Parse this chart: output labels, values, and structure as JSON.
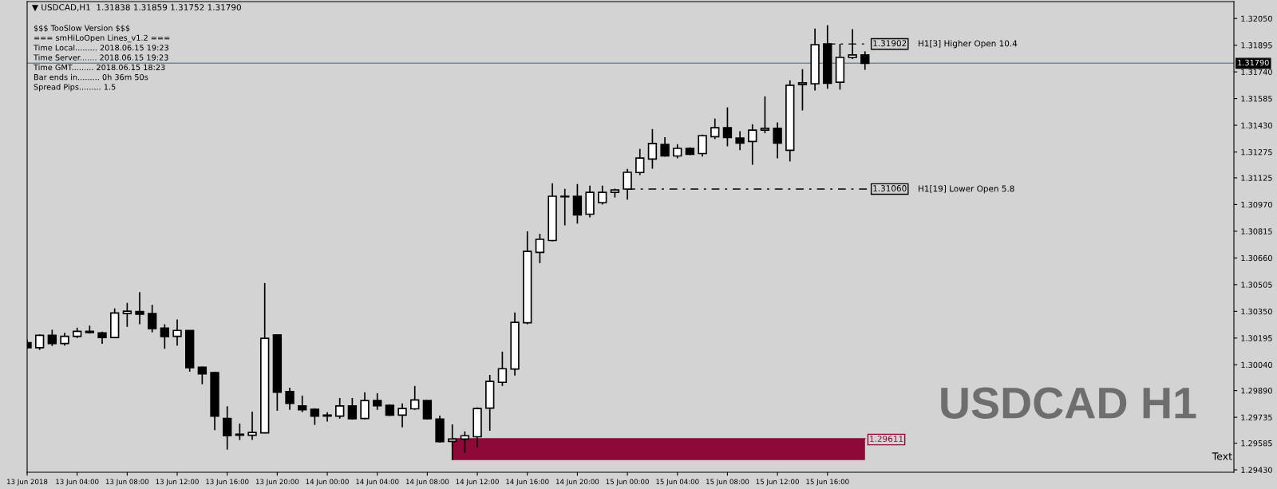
{
  "chart_data": {
    "type": "candlestick",
    "title": "▼ USDCAD,H1  1.31838 1.31859 1.31752 1.31790",
    "x": [
      "2018-06-13T00:00",
      "2018-06-13T01:00",
      "2018-06-13T02:00",
      "2018-06-13T03:00",
      "2018-06-13T04:00",
      "2018-06-13T05:00",
      "2018-06-13T06:00",
      "2018-06-13T07:00",
      "2018-06-13T08:00",
      "2018-06-13T09:00",
      "2018-06-13T10:00",
      "2018-06-13T11:00",
      "2018-06-13T12:00",
      "2018-06-13T13:00",
      "2018-06-13T14:00",
      "2018-06-13T15:00",
      "2018-06-13T16:00",
      "2018-06-13T17:00",
      "2018-06-13T18:00",
      "2018-06-13T19:00",
      "2018-06-13T20:00",
      "2018-06-13T21:00",
      "2018-06-13T22:00",
      "2018-06-13T23:00",
      "2018-06-14T00:00",
      "2018-06-14T01:00",
      "2018-06-14T02:00",
      "2018-06-14T03:00",
      "2018-06-14T04:00",
      "2018-06-14T05:00",
      "2018-06-14T06:00",
      "2018-06-14T07:00",
      "2018-06-14T08:00",
      "2018-06-14T09:00",
      "2018-06-14T10:00",
      "2018-06-14T11:00",
      "2018-06-14T12:00",
      "2018-06-14T13:00",
      "2018-06-14T14:00",
      "2018-06-14T15:00",
      "2018-06-14T16:00",
      "2018-06-14T17:00",
      "2018-06-14T18:00",
      "2018-06-14T19:00",
      "2018-06-14T20:00",
      "2018-06-14T21:00",
      "2018-06-14T22:00",
      "2018-06-14T23:00",
      "2018-06-15T00:00",
      "2018-06-15T01:00",
      "2018-06-15T02:00",
      "2018-06-15T03:00",
      "2018-06-15T04:00",
      "2018-06-15T05:00",
      "2018-06-15T06:00",
      "2018-06-15T07:00",
      "2018-06-15T08:00",
      "2018-06-15T09:00",
      "2018-06-15T10:00",
      "2018-06-15T11:00",
      "2018-06-15T12:00",
      "2018-06-15T13:00",
      "2018-06-15T14:00",
      "2018-06-15T15:00",
      "2018-06-15T16:00",
      "2018-06-15T17:00",
      "2018-06-15T18:00",
      "2018-06-15T19:00"
    ],
    "ohlc": [
      [
        1.30168,
        1.30186,
        1.30136,
        1.30139
      ],
      [
        1.30139,
        1.30216,
        1.30126,
        1.30211
      ],
      [
        1.30211,
        1.30243,
        1.30149,
        1.30163
      ],
      [
        1.30163,
        1.30225,
        1.30151,
        1.30205
      ],
      [
        1.30205,
        1.30255,
        1.30195,
        1.30234
      ],
      [
        1.30234,
        1.30267,
        1.30221,
        1.30227
      ],
      [
        1.30225,
        1.30232,
        1.30161,
        1.30198
      ],
      [
        1.30198,
        1.30367,
        1.30195,
        1.3034
      ],
      [
        1.30338,
        1.30399,
        1.3026,
        1.30351
      ],
      [
        1.30349,
        1.30461,
        1.30275,
        1.30333
      ],
      [
        1.30337,
        1.30388,
        1.30228,
        1.3025
      ],
      [
        1.30252,
        1.30275,
        1.30133,
        1.30203
      ],
      [
        1.30205,
        1.30303,
        1.30151,
        1.30239
      ],
      [
        1.30239,
        1.30239,
        1.3,
        1.30023
      ],
      [
        1.30026,
        1.3003,
        1.29927,
        1.29987
      ],
      [
        1.29994,
        1.3,
        1.2966,
        1.29742
      ],
      [
        1.29728,
        1.29799,
        1.29547,
        1.29628
      ],
      [
        1.29637,
        1.29699,
        1.29603,
        1.29631
      ],
      [
        1.29631,
        1.29768,
        1.29603,
        1.29647
      ],
      [
        1.29645,
        1.30514,
        1.29642,
        1.30193
      ],
      [
        1.30213,
        1.30216,
        1.29773,
        1.29881
      ],
      [
        1.29884,
        1.29907,
        1.29778,
        1.29816
      ],
      [
        1.29801,
        1.29861,
        1.29765,
        1.29779
      ],
      [
        1.29782,
        1.29787,
        1.29691,
        1.29742
      ],
      [
        1.29748,
        1.29764,
        1.2971,
        1.29742
      ],
      [
        1.29742,
        1.29847,
        1.29727,
        1.29801
      ],
      [
        1.29801,
        1.29847,
        1.29722,
        1.29727
      ],
      [
        1.29728,
        1.2988,
        1.29724,
        1.29832
      ],
      [
        1.29832,
        1.29875,
        1.29778,
        1.29802
      ],
      [
        1.29804,
        1.2981,
        1.29742,
        1.29747
      ],
      [
        1.29748,
        1.29815,
        1.29677,
        1.29786
      ],
      [
        1.29784,
        1.29917,
        1.29778,
        1.29836
      ],
      [
        1.29832,
        1.29832,
        1.29722,
        1.29727
      ],
      [
        1.29725,
        1.29745,
        1.29589,
        1.29594
      ],
      [
        1.29595,
        1.29694,
        1.29487,
        1.29609
      ],
      [
        1.29609,
        1.29653,
        1.29529,
        1.29628
      ],
      [
        1.29622,
        1.29792,
        1.2956,
        1.29786
      ],
      [
        1.29788,
        1.29981,
        1.29657,
        1.29943
      ],
      [
        1.29938,
        1.30116,
        1.29917,
        1.30017
      ],
      [
        1.30015,
        1.30343,
        1.29978,
        1.30286
      ],
      [
        1.30284,
        1.30815,
        1.30275,
        1.30698
      ],
      [
        1.30692,
        1.308,
        1.3063,
        1.30768
      ],
      [
        1.30761,
        1.31093,
        1.30757,
        1.31018
      ],
      [
        1.31015,
        1.31061,
        1.30849,
        1.31018
      ],
      [
        1.31018,
        1.31089,
        1.30859,
        1.3091
      ],
      [
        1.30914,
        1.3108,
        1.30896,
        1.31041
      ],
      [
        1.30981,
        1.3108,
        1.3097,
        1.31041
      ],
      [
        1.31041,
        1.31062,
        1.31011,
        1.31055
      ],
      [
        1.3106,
        1.31177,
        1.30998,
        1.31157
      ],
      [
        1.31156,
        1.31293,
        1.31141,
        1.3124
      ],
      [
        1.31234,
        1.31408,
        1.31178,
        1.31324
      ],
      [
        1.31319,
        1.31361,
        1.31248,
        1.31252
      ],
      [
        1.31252,
        1.3132,
        1.31238,
        1.31296
      ],
      [
        1.31296,
        1.31302,
        1.31257,
        1.31262
      ],
      [
        1.31266,
        1.31376,
        1.31248,
        1.3137
      ],
      [
        1.31364,
        1.31469,
        1.3135,
        1.31416
      ],
      [
        1.31416,
        1.31534,
        1.31308,
        1.31359
      ],
      [
        1.31356,
        1.31395,
        1.31285,
        1.31326
      ],
      [
        1.31336,
        1.31436,
        1.31201,
        1.31402
      ],
      [
        1.31402,
        1.31598,
        1.31384,
        1.31412
      ],
      [
        1.31412,
        1.31446,
        1.31238,
        1.31326
      ],
      [
        1.31285,
        1.31691,
        1.3122,
        1.31662
      ],
      [
        1.31667,
        1.31756,
        1.31516,
        1.31676
      ],
      [
        1.31671,
        1.31992,
        1.31632,
        1.31898
      ],
      [
        1.31902,
        1.32011,
        1.31642,
        1.31674
      ],
      [
        1.3168,
        1.31902,
        1.31637,
        1.31824
      ],
      [
        1.31824,
        1.31988,
        1.31815,
        1.31838
      ],
      [
        1.31838,
        1.31859,
        1.31752,
        1.3179
      ]
    ],
    "series": [
      {
        "type": "line",
        "color": "#000000",
        "line_style": "dashed",
        "x": [
          "2018-06-15T16:00",
          "2018-06-15T19:20"
        ],
        "values": [
          1.31902,
          1.31902
        ]
      },
      {
        "type": "line",
        "color": "#000000",
        "line_style": "dashed",
        "x": [
          "2018-06-15T00:00",
          "2018-06-15T19:20"
        ],
        "values": [
          1.3106,
          1.3106
        ]
      },
      {
        "type": "line",
        "color": "#8e0838",
        "x": [
          "2018-06-14T10:00",
          "2018-06-15T19:00"
        ],
        "values": [
          1.29611,
          1.29611
        ],
        "lower": [
          1.29487,
          1.29487
        ],
        "upper": [
          1.29611,
          1.29611
        ]
      }
    ],
    "ref_lines": [
      {
        "axis": "y",
        "value": 1.3179,
        "label": "1.31790",
        "color": "#778899"
      }
    ],
    "annotations": [
      "$$$ TooSlow Version $$$",
      "=== smHiLoOpen Lines_v1.2 ===",
      "Time Local......... 2018.06.15 19:23",
      "Time Server....... 2018.06.15 19:23",
      "Time GMT......... 2018.06.15 18:23",
      "Bar ends in......... 0h 36m 50s",
      "Spread Pips......... 1.5",
      "USDCAD H1",
      "Text",
      "H1[3] Higher Open 10.4",
      "H1[19] Lower Open 5.8",
      "1.29611",
      {
        "text": "1.31902",
        "x": "2018-06-15T19:20",
        "y": 1.31902
      },
      {
        "text": "1.31060",
        "x": "2018-06-15T19:20",
        "y": 1.3106
      }
    ],
    "xlim": [
      "2018-06-13T00:00",
      "2018-06-17T00:30"
    ],
    "xticks": [
      {
        "value": "2018-06-13T00:00",
        "label": "13 Jun 2018"
      },
      {
        "value": "2018-06-13T04:00",
        "label": "13 Jun 04:00"
      },
      {
        "value": "2018-06-13T08:00",
        "label": "13 Jun 08:00"
      },
      {
        "value": "2018-06-13T12:00",
        "label": "13 Jun 12:00"
      },
      {
        "value": "2018-06-13T16:00",
        "label": "13 Jun 16:00"
      },
      {
        "value": "2018-06-13T20:00",
        "label": "13 Jun 20:00"
      },
      {
        "value": "2018-06-14T00:00",
        "label": "14 Jun 00:00"
      },
      {
        "value": "2018-06-14T04:00",
        "label": "14 Jun 04:00"
      },
      {
        "value": "2018-06-14T08:00",
        "label": "14 Jun 08:00"
      },
      {
        "value": "2018-06-14T12:00",
        "label": "14 Jun 12:00"
      },
      {
        "value": "2018-06-14T16:00",
        "label": "14 Jun 16:00"
      },
      {
        "value": "2018-06-14T20:00",
        "label": "14 Jun 20:00"
      },
      {
        "value": "2018-06-15T00:00",
        "label": "15 Jun 00:00"
      },
      {
        "value": "2018-06-15T04:00",
        "label": "15 Jun 04:00"
      },
      {
        "value": "2018-06-15T08:00",
        "label": "15 Jun 08:00"
      },
      {
        "value": "2018-06-15T12:00",
        "label": "15 Jun 12:00"
      },
      {
        "value": "2018-06-15T16:00",
        "label": "15 Jun 16:00"
      }
    ],
    "ylim": [
      1.29416,
      1.32148
    ],
    "yticks": [
      {
        "value": 1.3205,
        "label": "1.32050"
      },
      {
        "value": 1.31895,
        "label": "1.31895"
      },
      {
        "value": 1.3174,
        "label": "1.31740"
      },
      {
        "value": 1.31585,
        "label": "1.31585"
      },
      {
        "value": 1.3143,
        "label": "1.31430"
      },
      {
        "value": 1.31275,
        "label": "1.31275"
      },
      {
        "value": 1.31125,
        "label": "1.31125"
      },
      {
        "value": 1.3097,
        "label": "1.30970"
      },
      {
        "value": 1.30815,
        "label": "1.30815"
      },
      {
        "value": 1.3066,
        "label": "1.30660"
      },
      {
        "value": 1.30505,
        "label": "1.30505"
      },
      {
        "value": 1.3035,
        "label": "1.30350"
      },
      {
        "value": 1.30195,
        "label": "1.30195"
      },
      {
        "value": 1.3004,
        "label": "1.30040"
      },
      {
        "value": 1.2989,
        "label": "1.29890"
      },
      {
        "value": 1.29735,
        "label": "1.29735"
      },
      {
        "value": 1.29585,
        "label": "1.29585"
      },
      {
        "value": 1.2943,
        "label": "1.29430"
      }
    ],
    "grid": false,
    "legend": false
  }
}
